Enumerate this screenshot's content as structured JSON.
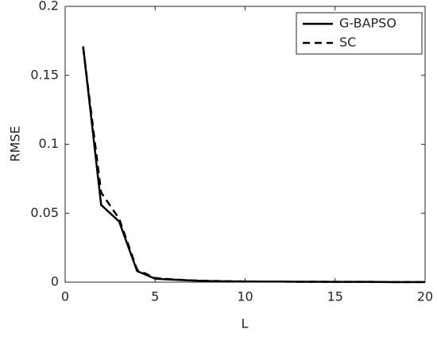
{
  "chart_data": {
    "type": "line",
    "xlabel": "L",
    "ylabel": "RMSE",
    "x": [
      1,
      2,
      3,
      4,
      5,
      6,
      7,
      8,
      9,
      10,
      11,
      12,
      13,
      14,
      15,
      16,
      17,
      18,
      19,
      20
    ],
    "series": [
      {
        "name": "G-BAPSO",
        "color": "#000000",
        "linestyle": "solid",
        "values": [
          0.171,
          0.056,
          0.044,
          0.008,
          0.0025,
          0.0018,
          0.0012,
          0.0008,
          0.0006,
          0.0005,
          0.0004,
          0.0004,
          0.0003,
          0.0003,
          0.0002,
          0.0002,
          0.0002,
          0.0001,
          0.0001,
          0.0001
        ]
      },
      {
        "name": "SC",
        "color": "#000000",
        "linestyle": "dashed",
        "values": [
          0.17,
          0.065,
          0.046,
          0.009,
          0.003,
          0.002,
          0.0013,
          0.0009,
          0.0007,
          0.0005,
          0.0004,
          0.0004,
          0.0003,
          0.0003,
          0.0002,
          0.0002,
          0.0002,
          0.0001,
          0.0001,
          0.0001
        ]
      }
    ],
    "xlim": [
      0,
      20
    ],
    "xticks": [
      0,
      5,
      10,
      15,
      20
    ],
    "ylim": [
      0,
      0.2
    ],
    "yticks": [
      0,
      0.05,
      0.1,
      0.15,
      0.2
    ],
    "legend": "upper right",
    "grid": false
  }
}
